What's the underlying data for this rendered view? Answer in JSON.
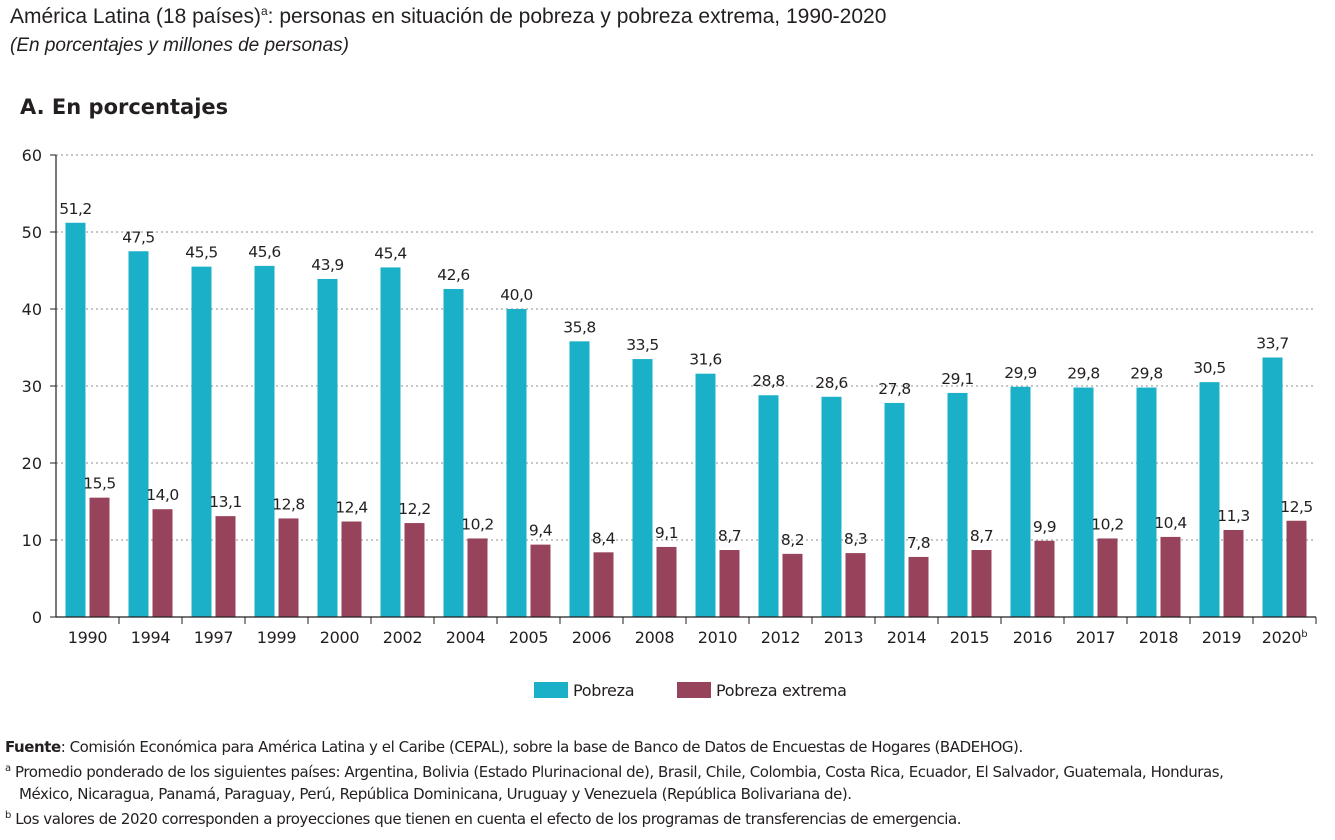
{
  "header": {
    "title": "América Latina (18 países)",
    "title_sup": "a",
    "title_rest": ": personas en situación de pobreza y pobreza extrema, 1990-2020",
    "subtitle": "(En porcentajes y millones de personas)",
    "panel_title": "A. En porcentajes"
  },
  "colors": {
    "pobreza": "#1ab0c7",
    "pobreza_extrema": "#97435c",
    "grid": "#8c8c8c",
    "text": "#231f20"
  },
  "chart_data": {
    "type": "bar",
    "categories": [
      "1990",
      "1994",
      "1997",
      "1999",
      "2000",
      "2002",
      "2004",
      "2005",
      "2006",
      "2008",
      "2010",
      "2012",
      "2013",
      "2014",
      "2015",
      "2016",
      "2017",
      "2018",
      "2019",
      "2020"
    ],
    "category_superscripts": {
      "2020": "b"
    },
    "series": [
      {
        "name": "Pobreza",
        "values": [
          51.2,
          47.5,
          45.5,
          45.6,
          43.9,
          45.4,
          42.6,
          40.0,
          35.8,
          33.5,
          31.6,
          28.8,
          28.6,
          27.8,
          29.1,
          29.9,
          29.8,
          29.8,
          30.5,
          33.7
        ],
        "labels": [
          "51,2",
          "47,5",
          "45,5",
          "45,6",
          "43,9",
          "45,4",
          "42,6",
          "40,0",
          "35,8",
          "33,5",
          "31,6",
          "28,8",
          "28,6",
          "27,8",
          "29,1",
          "29,9",
          "29,8",
          "29,8",
          "30,5",
          "33,7"
        ]
      },
      {
        "name": "Pobreza extrema",
        "values": [
          15.5,
          14.0,
          13.1,
          12.8,
          12.4,
          12.2,
          10.2,
          9.4,
          8.4,
          9.1,
          8.7,
          8.2,
          8.3,
          7.8,
          8.7,
          9.9,
          10.2,
          10.4,
          11.3,
          12.5
        ],
        "labels": [
          "15,5",
          "14,0",
          "13,1",
          "12,8",
          "12,4",
          "12,2",
          "10,2",
          "9,4",
          "8,4",
          "9,1",
          "8,7",
          "8,2",
          "8,3",
          "7,8",
          "8,7",
          "9,9",
          "10,2",
          "10,4",
          "11,3",
          "12,5"
        ]
      }
    ],
    "ylim": [
      0,
      60
    ],
    "yticks": [
      0,
      10,
      20,
      30,
      40,
      50,
      60
    ],
    "grid": true,
    "legend": "bottom-center"
  },
  "notes": {
    "source_label": "Fuente",
    "source_text": ":  Comisión Económica para América Latina y el Caribe (CEPAL), sobre la base de Banco de Datos de Encuestas de Hogares (BADEHOG).",
    "note_a_mark": "a",
    "note_a_line1": " Promedio ponderado de los siguientes países: Argentina, Bolivia (Estado Plurinacional de), Brasil, Chile, Colombia, Costa Rica, Ecuador, El Salvador, Guatemala, Honduras,",
    "note_a_line2": "México, Nicaragua, Panamá, Paraguay, Perú, República Dominicana, Uruguay y Venezuela (República Bolivariana de).",
    "note_b_mark": "b",
    "note_b_text": " Los valores de 2020 corresponden a proyecciones que tienen en cuenta el efecto de los programas de transferencias de emergencia."
  }
}
